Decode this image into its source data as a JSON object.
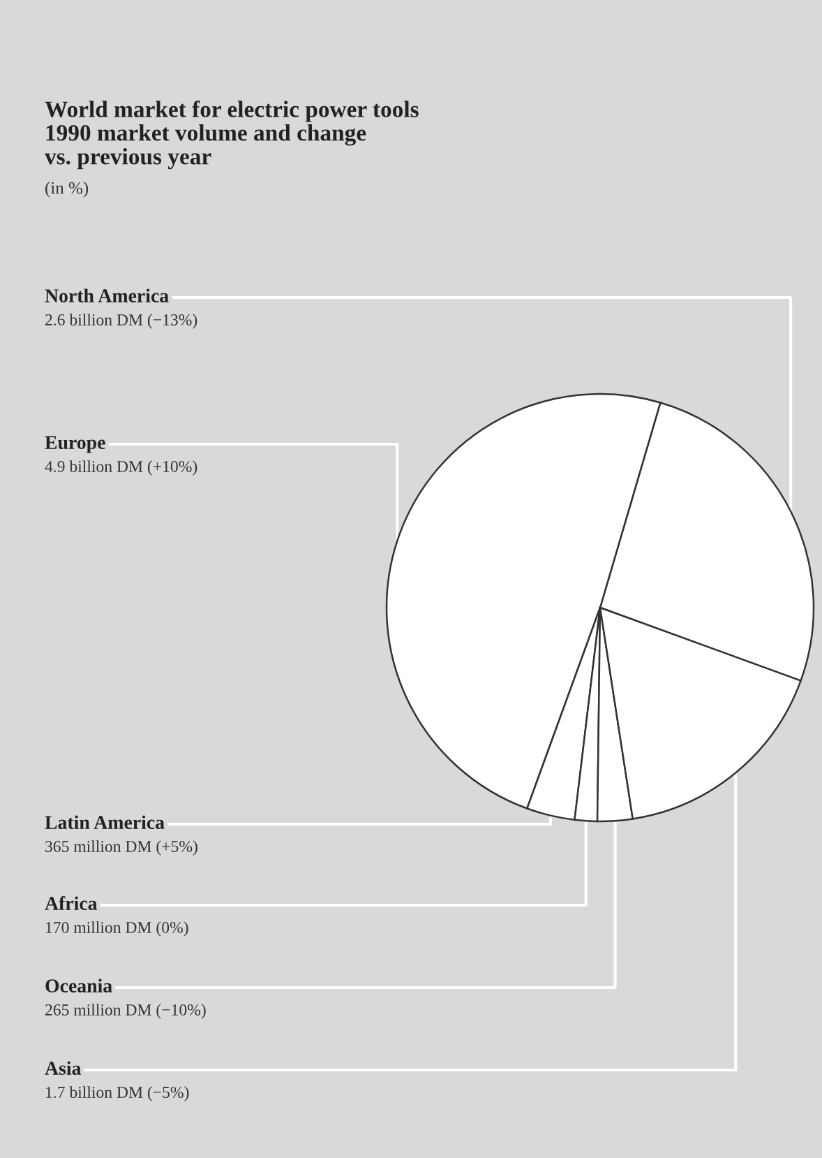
{
  "chart_data": {
    "type": "pie",
    "title": "World market for electric power tools\n1990 market volume and change\nvs. previous year",
    "subtitle": "(in %)",
    "categories": [
      "North America",
      "Europe",
      "Latin America",
      "Africa",
      "Oceania",
      "Asia"
    ],
    "values": [
      26,
      49,
      3.65,
      1.7,
      2.65,
      17
    ],
    "annotations": [
      "2.6 billion DM (−13%)",
      "4.9 billion DM (+10%)",
      "365 million DM (+5%)",
      "170 million DM (0%)",
      "265 million DM (−10%)",
      "1.7 billion DM (−5%)"
    ],
    "colors": [
      "#ffffff",
      "#ffffff",
      "#ffffff",
      "#ffffff",
      "#ffffff",
      "#ffffff"
    ],
    "legend": false
  }
}
